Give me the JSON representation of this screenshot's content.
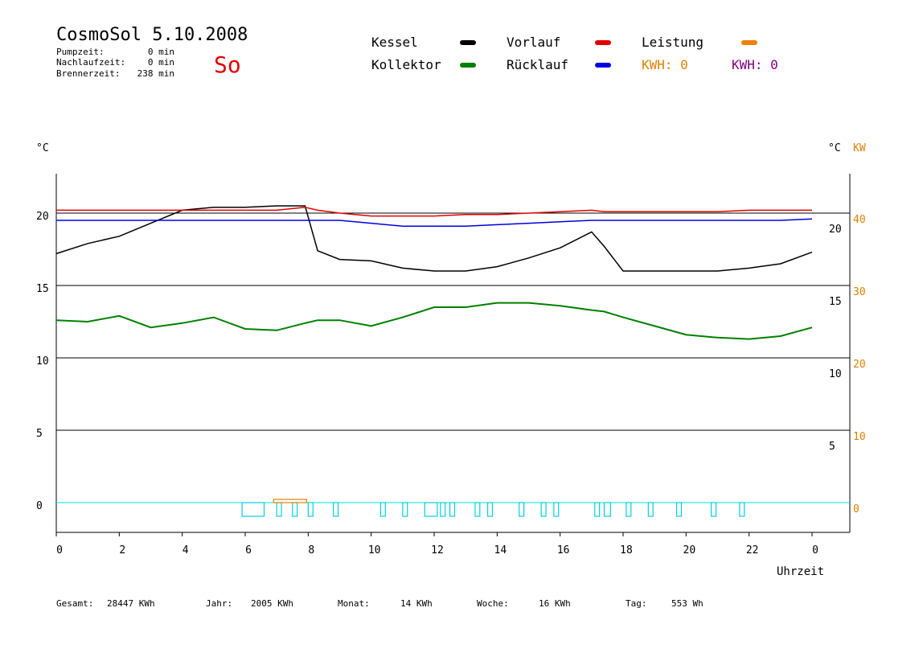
{
  "header": {
    "title": "CosmoSol 5.10.2008",
    "weekday": "So",
    "stats": [
      {
        "label": "Pumpzeit:",
        "value": "0 min"
      },
      {
        "label": "Nachlaufzeit:",
        "value": "0 min"
      },
      {
        "label": "Brennerzeit:",
        "value": "238 min"
      }
    ]
  },
  "legend": [
    {
      "label": "Kessel",
      "color": "#000000"
    },
    {
      "label": "Vorlauf",
      "color": "#e00000"
    },
    {
      "label": "Leistung",
      "color": "#f08000"
    },
    {
      "label": "Kollektor",
      "color": "#008000"
    },
    {
      "label": "Rücklauf",
      "color": "#0000e0"
    }
  ],
  "kwh": [
    {
      "label": "KWH: 0",
      "color": "#e08000"
    },
    {
      "label": "KWH: 0",
      "color": "#800080"
    }
  ],
  "axes": {
    "left_unit": "°C",
    "right_unit_c": "°C",
    "right_unit_kw": "KW",
    "x_label": "Uhrzeit"
  },
  "chart_data": {
    "type": "line",
    "x": [
      0,
      1,
      2,
      3,
      4,
      5,
      6,
      7,
      7.9,
      8.3,
      9,
      10,
      11,
      12,
      13,
      14,
      15,
      16,
      17,
      17.4,
      18,
      19,
      20,
      21,
      22,
      23,
      24
    ],
    "xlim": [
      0,
      24
    ],
    "x_ticks": [
      "0",
      "2",
      "4",
      "6",
      "8",
      "10",
      "12",
      "14",
      "16",
      "18",
      "20",
      "22",
      "0"
    ],
    "ylim": [
      -2,
      23
    ],
    "y_ticks_left": [
      "0",
      "5",
      "10",
      "15",
      "20"
    ],
    "y_ticks_right_c": [
      "5",
      "10",
      "15",
      "20"
    ],
    "y_ticks_right_kw": [
      "0",
      "10",
      "20",
      "30",
      "40"
    ],
    "grid": true,
    "series": [
      {
        "name": "Kessel",
        "color": "#000000",
        "values": [
          17.2,
          17.9,
          18.4,
          19.3,
          20.2,
          20.4,
          20.4,
          20.5,
          20.5,
          17.4,
          16.8,
          16.7,
          16.2,
          16.0,
          16.0,
          16.3,
          16.9,
          17.6,
          18.7,
          17.7,
          16.0,
          16.0,
          16.0,
          16.0,
          16.2,
          16.5,
          17.3
        ]
      },
      {
        "name": "Vorlauf",
        "color": "#e00000",
        "values": [
          20.2,
          20.2,
          20.2,
          20.2,
          20.2,
          20.2,
          20.2,
          20.2,
          20.4,
          20.2,
          20.0,
          19.8,
          19.8,
          19.8,
          19.9,
          19.9,
          20.0,
          20.1,
          20.2,
          20.1,
          20.1,
          20.1,
          20.1,
          20.1,
          20.2,
          20.2,
          20.2
        ]
      },
      {
        "name": "Rücklauf",
        "color": "#0000e0",
        "values": [
          19.5,
          19.5,
          19.5,
          19.5,
          19.5,
          19.5,
          19.5,
          19.5,
          19.5,
          19.5,
          19.5,
          19.3,
          19.1,
          19.1,
          19.1,
          19.2,
          19.3,
          19.4,
          19.5,
          19.5,
          19.5,
          19.5,
          19.5,
          19.5,
          19.5,
          19.5,
          19.6
        ]
      },
      {
        "name": "Kollektor",
        "color": "#008000",
        "values": [
          12.6,
          12.5,
          12.9,
          12.1,
          12.4,
          12.8,
          12.0,
          11.9,
          12.4,
          12.6,
          12.6,
          12.2,
          12.8,
          13.5,
          13.5,
          13.8,
          13.8,
          13.6,
          13.3,
          13.2,
          12.8,
          12.2,
          11.6,
          11.4,
          11.3,
          11.5,
          12.1
        ]
      }
    ]
  },
  "footer": [
    {
      "label": "Gesamt:",
      "value": "28447 KWh"
    },
    {
      "label": "Jahr:",
      "value": "2005 KWh"
    },
    {
      "label": "Monat:",
      "value": "14 KWh"
    },
    {
      "label": "Woche:",
      "value": "16 KWh"
    },
    {
      "label": "Tag:",
      "value": "553 Wh"
    }
  ]
}
